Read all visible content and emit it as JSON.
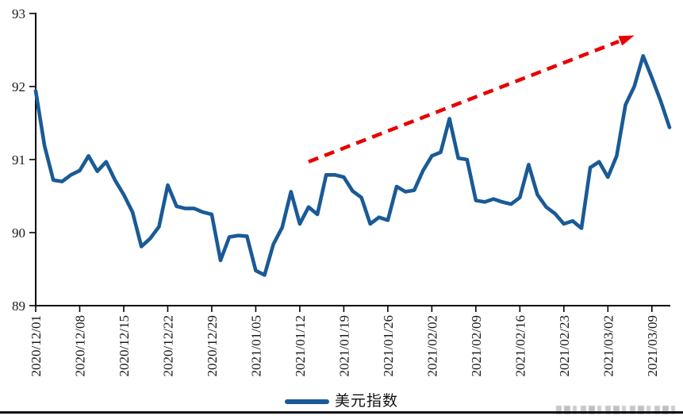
{
  "page": {
    "background_color": "#ffffff",
    "bottom_border_color": "#10101a"
  },
  "legend": {
    "label": "美元指数",
    "marker_color": "#1a5a96"
  },
  "watermark": {
    "legible": false,
    "color": "#9a9a9a"
  },
  "chart_data": {
    "type": "line",
    "title": "",
    "xlabel": "",
    "ylabel": "",
    "ylim": [
      89,
      93
    ],
    "y_ticks": [
      93,
      92,
      91,
      90,
      89
    ],
    "grid": false,
    "legend_position": "bottom-center",
    "axis_color": "#000000",
    "tick_label_color": "#1a1a1a",
    "x_tick_every": 5,
    "x_tick_labels": [
      "2020/12/01",
      "2020/12/08",
      "2020/12/15",
      "2020/12/22",
      "2020/12/29",
      "2021/01/05",
      "2021/01/12",
      "2021/01/19",
      "2021/01/26",
      "2021/02/02",
      "2021/02/09",
      "2021/02/16",
      "2021/02/23",
      "2021/03/02",
      "2021/03/09"
    ],
    "dates": [
      "2020/12/01",
      "2020/12/02",
      "2020/12/03",
      "2020/12/04",
      "2020/12/07",
      "2020/12/08",
      "2020/12/09",
      "2020/12/10",
      "2020/12/11",
      "2020/12/14",
      "2020/12/15",
      "2020/12/16",
      "2020/12/17",
      "2020/12/18",
      "2020/12/21",
      "2020/12/22",
      "2020/12/23",
      "2020/12/24",
      "2020/12/25",
      "2020/12/28",
      "2020/12/29",
      "2020/12/30",
      "2020/12/31",
      "2021/01/01",
      "2021/01/04",
      "2021/01/05",
      "2021/01/06",
      "2021/01/07",
      "2021/01/08",
      "2021/01/11",
      "2021/01/12",
      "2021/01/13",
      "2021/01/14",
      "2021/01/15",
      "2021/01/18",
      "2021/01/19",
      "2021/01/20",
      "2021/01/21",
      "2021/01/22",
      "2021/01/25",
      "2021/01/26",
      "2021/01/27",
      "2021/01/28",
      "2021/01/29",
      "2021/02/01",
      "2021/02/02",
      "2021/02/03",
      "2021/02/04",
      "2021/02/05",
      "2021/02/08",
      "2021/02/09",
      "2021/02/10",
      "2021/02/11",
      "2021/02/12",
      "2021/02/15",
      "2021/02/16",
      "2021/02/17",
      "2021/02/18",
      "2021/02/19",
      "2021/02/22",
      "2021/02/23",
      "2021/02/24",
      "2021/02/25",
      "2021/02/26",
      "2021/03/01",
      "2021/03/02",
      "2021/03/03",
      "2021/03/04",
      "2021/03/05",
      "2021/03/08",
      "2021/03/09",
      "2021/03/10",
      "2021/03/11"
    ],
    "series": [
      {
        "name": "美元指数",
        "color": "#1a5a96",
        "values": [
          91.94,
          91.19,
          90.72,
          90.7,
          90.79,
          90.85,
          91.05,
          90.84,
          90.97,
          90.72,
          90.52,
          90.28,
          89.81,
          89.92,
          90.08,
          90.65,
          90.36,
          90.33,
          90.33,
          90.28,
          90.25,
          89.62,
          89.94,
          89.96,
          89.95,
          89.48,
          89.42,
          89.84,
          90.07,
          90.56,
          90.12,
          90.35,
          90.25,
          90.79,
          90.79,
          90.76,
          90.57,
          90.48,
          90.12,
          90.21,
          90.17,
          90.63,
          90.56,
          90.58,
          90.85,
          91.05,
          91.1,
          91.56,
          91.02,
          91.0,
          90.44,
          90.42,
          90.46,
          90.42,
          90.39,
          90.48,
          90.93,
          90.52,
          90.35,
          90.26,
          90.12,
          90.16,
          90.06,
          90.89,
          90.97,
          90.76,
          91.05,
          91.75,
          92.0,
          92.42,
          92.12,
          91.8,
          91.44
        ]
      }
    ],
    "annotations": [
      {
        "type": "arrow",
        "line_style": "dashed",
        "color": "#e80000",
        "from_date": "2021/01/13",
        "from_value": 90.97,
        "to_date": "2021/03/05",
        "to_value": 92.7
      }
    ]
  }
}
